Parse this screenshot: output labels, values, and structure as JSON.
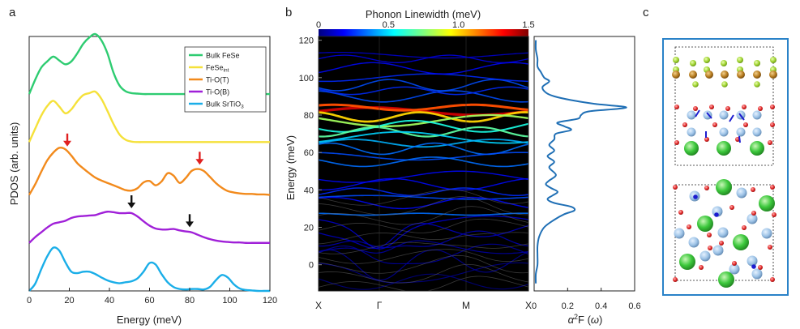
{
  "panels": {
    "a": "a",
    "b": "b",
    "c": "c"
  },
  "colors": {
    "bulk_fese": "#2ecc71",
    "fese_int": "#f5e13a",
    "tio_t": "#f28a1c",
    "tio_b": "#a020d8",
    "bulk_srtio3": "#1aaee8",
    "a2f": "#1f6fb5",
    "arrow_red": "#e02020",
    "arrow_black": "#111111",
    "frame_c": "#2a82c8"
  },
  "chart_data": [
    {
      "panel": "a",
      "type": "line",
      "title": "",
      "xlabel": "Energy (meV)",
      "ylabel": "PDOS (arb. units)",
      "xlim": [
        0,
        120
      ],
      "ylim": [
        0,
        5.3
      ],
      "xticks": [
        0,
        20,
        40,
        60,
        80,
        100,
        120
      ],
      "x": [
        0,
        3,
        6,
        9,
        12,
        15,
        18,
        21,
        24,
        27,
        30,
        33,
        36,
        39,
        42,
        45,
        48,
        51,
        54,
        57,
        60,
        63,
        66,
        69,
        72,
        75,
        78,
        81,
        84,
        87,
        90,
        93,
        96,
        99,
        102,
        105,
        108,
        111,
        114,
        117,
        120
      ],
      "legend": {
        "placement": "top-right",
        "entries": [
          "Bulk FeSe",
          "FeSe",
          "Ti-O(T)",
          "Ti-O(B)",
          "Bulk SrTiO"
        ],
        "subscripts": [
          "",
          "int",
          "",
          "",
          "3"
        ]
      },
      "series": [
        {
          "name": "Bulk FeSe",
          "color": "#2ecc71",
          "offset": 4.1,
          "values": [
            0,
            0.3,
            0.55,
            0.68,
            0.78,
            0.7,
            0.62,
            0.68,
            0.85,
            1.05,
            1.18,
            1.25,
            1.12,
            0.85,
            0.45,
            0.18,
            0.06,
            0.02,
            0.01,
            0,
            0,
            0,
            0,
            0,
            0,
            0,
            0,
            0,
            0,
            0,
            0,
            0,
            0,
            0,
            0,
            0,
            0,
            0,
            0,
            0,
            0
          ]
        },
        {
          "name": "FeSe int",
          "color": "#f5e13a",
          "offset": 3.1,
          "values": [
            0,
            0.28,
            0.55,
            0.75,
            0.86,
            0.74,
            0.6,
            0.68,
            0.85,
            0.98,
            1.02,
            1.05,
            0.9,
            0.65,
            0.38,
            0.16,
            0.05,
            0.01,
            0,
            0,
            0,
            0,
            0,
            0,
            0,
            0,
            0,
            0,
            0,
            0,
            0,
            0,
            0,
            0,
            0,
            0,
            0,
            0,
            0,
            0,
            0
          ]
        },
        {
          "name": "Ti-O(T)",
          "color": "#f28a1c",
          "offset": 2.0,
          "values": [
            0,
            0.22,
            0.48,
            0.72,
            0.88,
            0.98,
            0.95,
            0.82,
            0.66,
            0.55,
            0.45,
            0.36,
            0.3,
            0.25,
            0.2,
            0.15,
            0.1,
            0.09,
            0.14,
            0.26,
            0.29,
            0.2,
            0.28,
            0.45,
            0.4,
            0.25,
            0.35,
            0.5,
            0.54,
            0.5,
            0.38,
            0.25,
            0.15,
            0.08,
            0.05,
            0.03,
            0.02,
            0.02,
            0.01,
            0.01,
            0
          ]
        },
        {
          "name": "Ti-O(B)",
          "color": "#a020d8",
          "offset": 1.0,
          "values": [
            0,
            0.12,
            0.22,
            0.32,
            0.4,
            0.43,
            0.46,
            0.52,
            0.55,
            0.56,
            0.57,
            0.58,
            0.62,
            0.65,
            0.64,
            0.62,
            0.62,
            0.62,
            0.55,
            0.45,
            0.36,
            0.3,
            0.28,
            0.28,
            0.29,
            0.26,
            0.24,
            0.22,
            0.17,
            0.12,
            0.08,
            0.05,
            0.03,
            0.02,
            0.01,
            0.01,
            0,
            0,
            0,
            0,
            0
          ]
        },
        {
          "name": "Bulk SrTiO3",
          "color": "#1aaee8",
          "offset": 0.0,
          "values": [
            0,
            0.15,
            0.45,
            0.72,
            0.9,
            0.84,
            0.6,
            0.4,
            0.37,
            0.4,
            0.4,
            0.35,
            0.28,
            0.22,
            0.18,
            0.16,
            0.18,
            0.2,
            0.26,
            0.4,
            0.58,
            0.55,
            0.35,
            0.18,
            0.08,
            0.04,
            0.03,
            0.04,
            0.04,
            0.03,
            0.08,
            0.22,
            0.33,
            0.28,
            0.14,
            0.05,
            0.02,
            0.01,
            0,
            0,
            0
          ]
        }
      ],
      "arrows": [
        {
          "x": 19,
          "series": "Ti-O(T)",
          "color": "red"
        },
        {
          "x": 85,
          "series": "Ti-O(T)",
          "color": "red"
        },
        {
          "x": 51,
          "series": "Ti-O(B)",
          "color": "black"
        },
        {
          "x": 80,
          "series": "Ti-O(B)",
          "color": "black"
        }
      ]
    },
    {
      "panel": "b",
      "type": "line",
      "title": "",
      "colorbar": {
        "title": "Phonon Linewidth (meV)",
        "ticks": [
          "0",
          "0.5",
          "1.0",
          "1.5"
        ],
        "range": [
          0,
          1.5
        ]
      },
      "ylabel": "Energy (meV)",
      "ylim": [
        -14,
        122
      ],
      "yticks": [
        0,
        20,
        40,
        60,
        80,
        100,
        120
      ],
      "xtick_labels": [
        "X",
        "Γ",
        "M",
        "X"
      ],
      "bands": [
        {
          "e": 82,
          "amp": 2.0,
          "lw": 1.4
        },
        {
          "e": 84,
          "amp": 1.5,
          "lw": 1.2
        },
        {
          "e": 79,
          "amp": 2.5,
          "lw": 1.0
        },
        {
          "e": 77,
          "amp": 3.0,
          "lw": 0.8
        },
        {
          "e": 74,
          "amp": 3.0,
          "lw": 0.6
        },
        {
          "e": 71,
          "amp": 2.5,
          "lw": 0.7
        },
        {
          "e": 68,
          "amp": 3.0,
          "lw": 0.5
        },
        {
          "e": 65,
          "amp": 2.0,
          "lw": 0.45
        },
        {
          "e": 62,
          "amp": 3.0,
          "lw": 0.35
        },
        {
          "e": 58,
          "amp": 2.0,
          "lw": 0.3
        },
        {
          "e": 55,
          "amp": 2.5,
          "lw": 0.35
        },
        {
          "e": 96,
          "amp": 3.0,
          "lw": 0.3
        },
        {
          "e": 100,
          "amp": 2.0,
          "lw": 0.25
        },
        {
          "e": 105,
          "amp": 3.0,
          "lw": 0.2
        },
        {
          "e": 110,
          "amp": 2.0,
          "lw": 0.15
        },
        {
          "e": 112,
          "amp": 1.5,
          "lw": 0.12
        },
        {
          "e": 90,
          "amp": 3.0,
          "lw": 0.3
        },
        {
          "e": 93,
          "amp": 2.0,
          "lw": 0.25
        },
        {
          "e": 47,
          "amp": 3.0,
          "lw": 0.2
        },
        {
          "e": 43,
          "amp": 3.0,
          "lw": 0.2
        },
        {
          "e": 39,
          "amp": 2.0,
          "lw": 0.25
        },
        {
          "e": 36,
          "amp": 1.0,
          "lw": 0.3
        },
        {
          "e": 33,
          "amp": 3.0,
          "lw": 0.2
        },
        {
          "e": 27,
          "amp": 0.5,
          "lw": 0.35
        },
        {
          "e": 23,
          "amp": 3.0,
          "lw": 0.12
        },
        {
          "e": 19,
          "amp": 4.0,
          "lw": 0.1
        },
        {
          "e": 14,
          "amp": 4.0,
          "lw": 0.08
        },
        {
          "e": 10,
          "amp": 4.0,
          "lw": 0.06
        },
        {
          "e": 6,
          "amp": 5.0,
          "lw": 0.05
        },
        {
          "e": 2,
          "amp": 6.0,
          "lw": 0.04
        },
        {
          "e": -4,
          "amp": 5.0,
          "lw": 0.02
        },
        {
          "e": -9,
          "amp": 4.0,
          "lw": 0.01
        }
      ]
    },
    {
      "panel": "b-side",
      "type": "line",
      "xlabel_parts": [
        "α",
        "2",
        "F (",
        "ω",
        ")"
      ],
      "xlim": [
        0,
        0.6
      ],
      "xticks": [
        "0",
        "0.2",
        "0.4",
        "0.6"
      ],
      "energy": [
        -10,
        -5,
        0,
        5,
        10,
        15,
        20,
        24,
        27,
        29,
        31,
        33,
        35,
        37,
        39,
        41,
        43,
        45,
        48,
        52,
        55,
        58,
        61,
        64,
        67,
        70,
        72,
        74,
        76,
        78,
        80,
        82,
        84,
        86,
        88,
        90,
        92,
        95,
        98,
        100,
        103,
        106,
        110,
        115,
        120
      ],
      "values": [
        0.01,
        0.01,
        0.02,
        0.02,
        0.02,
        0.03,
        0.06,
        0.12,
        0.18,
        0.24,
        0.22,
        0.12,
        0.08,
        0.11,
        0.14,
        0.1,
        0.07,
        0.09,
        0.13,
        0.09,
        0.12,
        0.08,
        0.12,
        0.09,
        0.12,
        0.13,
        0.22,
        0.18,
        0.14,
        0.26,
        0.28,
        0.33,
        0.55,
        0.36,
        0.22,
        0.12,
        0.07,
        0.05,
        0.09,
        0.06,
        0.04,
        0.02,
        0.02,
        0.01,
        0.01
      ]
    }
  ]
}
